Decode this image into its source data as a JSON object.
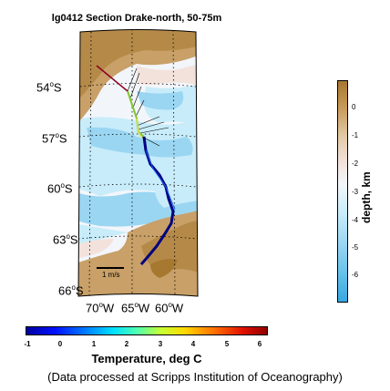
{
  "title": "lg0412 Section Drake-north, 50-75m",
  "latitude_labels": [
    {
      "deg": "54",
      "hemi": "S"
    },
    {
      "deg": "57",
      "hemi": "S"
    },
    {
      "deg": "60",
      "hemi": "S"
    },
    {
      "deg": "63",
      "hemi": "S"
    },
    {
      "deg": "66",
      "hemi": "S"
    }
  ],
  "longitude_labels": [
    {
      "deg": "70",
      "hemi": "W"
    },
    {
      "deg": "65",
      "hemi": "W"
    },
    {
      "deg": "60",
      "hemi": "W"
    }
  ],
  "depth_colorbar": {
    "label": "depth, km",
    "ticks": [
      "0",
      "-1",
      "-2",
      "-3",
      "-4",
      "-5",
      "-6"
    ]
  },
  "temperature_colorbar": {
    "label": "Temperature, deg C",
    "ticks": [
      "-1",
      "0",
      "1",
      "2",
      "3",
      "4",
      "5",
      "6"
    ]
  },
  "scale_label": "1 m/s",
  "credit": "(Data processed at Scripps Institution of Oceanography)",
  "colors": {
    "land": "#c8a068",
    "shelf": "#a67830",
    "shallow": "#f3e2dc",
    "deep": "#9ad6f2",
    "mid": "#c8ecfa"
  }
}
